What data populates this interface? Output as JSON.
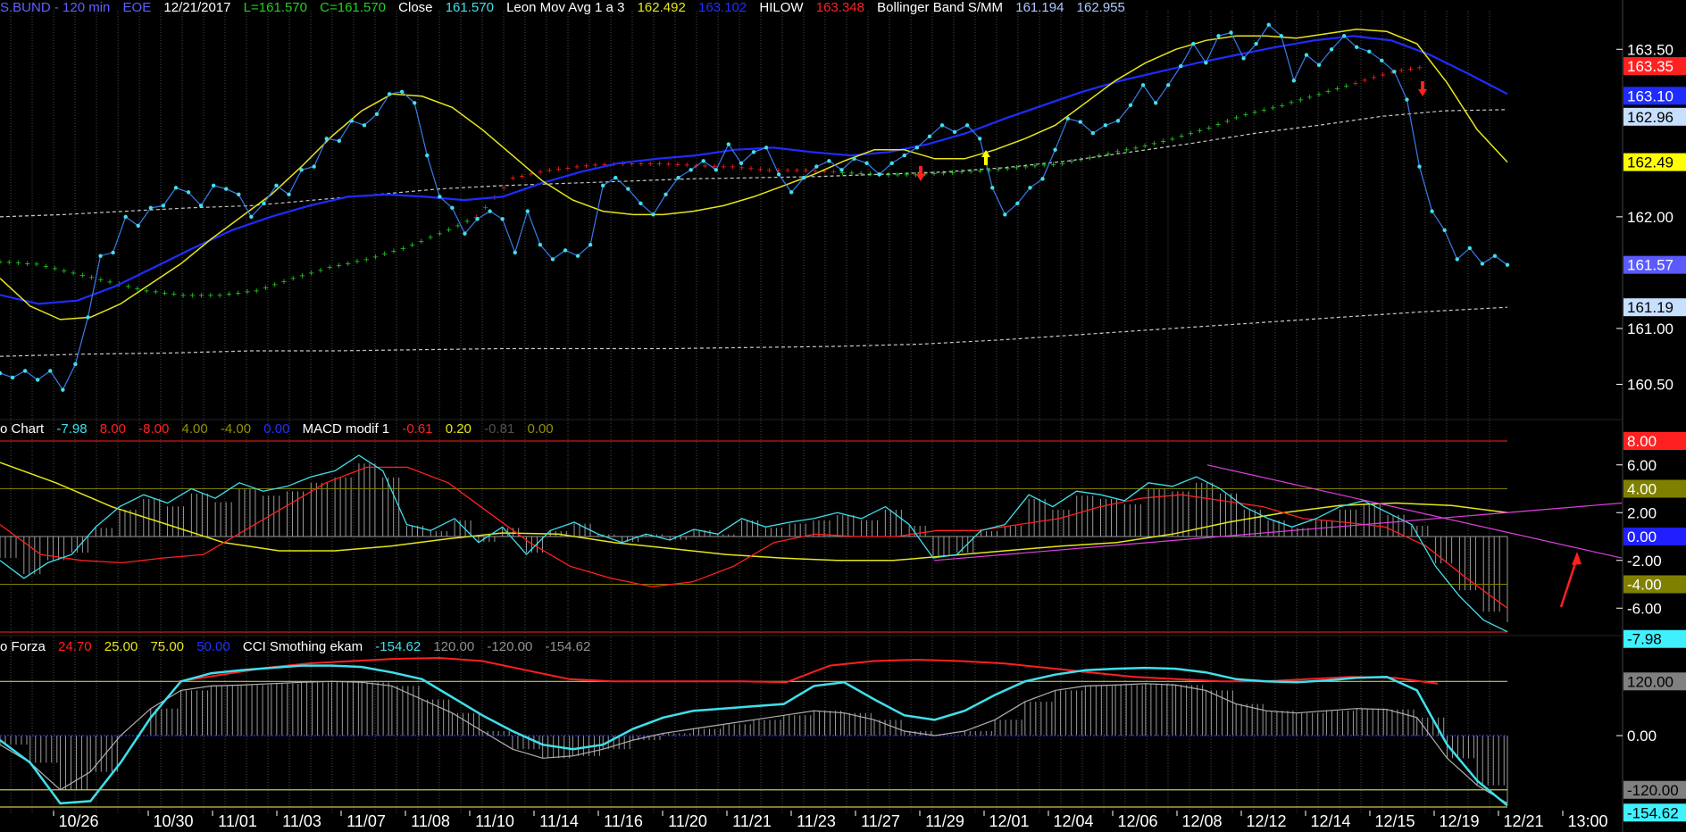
{
  "header": {
    "symbol": "S.BUND - 120 min",
    "session": "EOE",
    "date": "12/21/2017",
    "low": "L=161.570",
    "close_val": "C=161.570",
    "close_word": "Close",
    "close_num": "161.570",
    "leon_name": "Leon Mov Avg 1 a 3",
    "leon_v1": "162.492",
    "leon_v2": "163.102",
    "hilow_name": "HILOW",
    "hilow_v": "163.348",
    "bb_name": "Bollinger Band S/MM",
    "bb_v1": "161.194",
    "bb_v2": "162.955"
  },
  "panel2_header": {
    "name": "o Chart",
    "v1": "-7.98",
    "v2": "8.00",
    "v3": "-8.00",
    "v4": "4.00",
    "v5": "-4.00",
    "v6": "0.00",
    "macd_name": "MACD modif 1",
    "m1": "-0.61",
    "m2": "0.20",
    "m3": "-0.81",
    "m4": "0.00"
  },
  "panel3_header": {
    "name": "o Forza",
    "v1": "24.70",
    "v2": "25.00",
    "v3": "75.00",
    "v4": "50.00",
    "cci_name": "CCI Smothing ekam",
    "c1": "-154.62",
    "c2": "120.00",
    "c3": "-120.00",
    "c4": "-154.62"
  },
  "colors": {
    "cyan": "#40e0ec",
    "blue": "#1f2cff",
    "yellow": "#e6e61a",
    "red": "#ff2020",
    "green": "#22d022",
    "grid": "#5a5a5a",
    "magenta": "#e040e0",
    "band": "#c8c8c8"
  },
  "x_labels": [
    "10/26",
    "10/30",
    "11/01",
    "11/03",
    "11/07",
    "11/08",
    "11/10",
    "11/14",
    "11/16",
    "11/20",
    "11/21",
    "11/23",
    "11/27",
    "11/29",
    "12/01",
    "12/04",
    "12/06",
    "12/08",
    "12/12",
    "12/14",
    "12/15",
    "12/19",
    "12/21",
    "13:00"
  ],
  "y_axis_main": [
    "163.50",
    "162.00",
    "161.00",
    "160.50"
  ],
  "y_axis_main_tags": [
    {
      "text": "163.35",
      "bg": "#ff2020",
      "fg": "#ffffff"
    },
    {
      "text": "163.10",
      "bg": "#1f2cff",
      "fg": "#ffffff"
    },
    {
      "text": "162.96",
      "bg": "#c8e0ff",
      "fg": "#000000"
    },
    {
      "text": "162.49",
      "bg": "#ffff00",
      "fg": "#000000"
    },
    {
      "text": "161.57",
      "bg": "#5a5aff",
      "fg": "#ffffff"
    },
    {
      "text": "161.19",
      "bg": "#c8e0ff",
      "fg": "#000000"
    }
  ],
  "y_axis_macd": [
    "6.00",
    "2.00",
    "-2.00",
    "-6.00"
  ],
  "y_axis_macd_tags": [
    {
      "text": "8.00",
      "bg": "#ff2020",
      "fg": "#ffffff"
    },
    {
      "text": "4.00",
      "bg": "#808000",
      "fg": "#ffffff"
    },
    {
      "text": "0.00",
      "bg": "#1f1fff",
      "fg": "#ffffff"
    },
    {
      "text": "-4.00",
      "bg": "#808000",
      "fg": "#ffffff"
    },
    {
      "text": "-7.98",
      "bg": "#40f0ff",
      "fg": "#000000"
    }
  ],
  "y_axis_cci": [
    "0.00"
  ],
  "y_axis_cci_tags": [
    {
      "text": "120.00",
      "bg": "#808080",
      "fg": "#000000"
    },
    {
      "text": "-120.00",
      "bg": "#808080",
      "fg": "#000000"
    },
    {
      "text": "-154.62",
      "bg": "#40f0ff",
      "fg": "#000000"
    }
  ],
  "chart_data": {
    "type": "line",
    "panels": [
      {
        "name": "price",
        "ylim": [
          160.2,
          163.75
        ],
        "series": [
          {
            "name": "Close",
            "values": [
              160.6,
              160.56,
              160.62,
              160.54,
              160.62,
              160.45,
              160.68,
              161.1,
              161.65,
              161.68,
              162.0,
              161.92,
              162.08,
              162.1,
              162.26,
              162.22,
              162.1,
              162.28,
              162.25,
              162.2,
              162.0,
              162.12,
              162.28,
              162.2,
              162.42,
              162.45,
              162.7,
              162.68,
              162.86,
              162.82,
              162.92,
              163.1,
              163.12,
              163.02,
              162.55,
              162.18,
              162.08,
              161.85,
              161.98,
              162.05,
              161.98,
              161.68,
              162.05,
              161.75,
              161.62,
              161.7,
              161.65,
              161.75,
              162.28,
              162.35,
              162.25,
              162.12,
              162.02,
              162.2,
              162.35,
              162.42,
              162.5,
              162.42,
              162.65,
              162.48,
              162.58,
              162.62,
              162.38,
              162.22,
              162.35,
              162.45,
              162.5,
              162.42,
              162.52,
              162.48,
              162.38,
              162.48,
              162.55,
              162.62,
              162.72,
              162.82,
              162.76,
              162.82,
              162.7,
              162.26,
              162.02,
              162.12,
              162.26,
              162.34,
              162.6,
              162.88,
              162.85,
              162.75,
              162.82,
              162.86,
              163.0,
              163.18,
              163.02,
              163.18,
              163.35,
              163.55,
              163.38,
              163.62,
              163.65,
              163.42,
              163.55,
              163.72,
              163.62,
              163.22,
              163.45,
              163.36,
              163.5,
              163.62,
              163.52,
              163.48,
              163.4,
              163.3,
              163.05,
              162.45,
              162.05,
              161.88,
              161.62,
              161.72,
              161.58,
              161.65,
              161.57
            ]
          },
          {
            "name": "Leon Mov Avg 1 a 3",
            "values": [
              161.45,
              161.2,
              161.08,
              161.1,
              161.22,
              161.4,
              161.58,
              161.8,
              162.0,
              162.2,
              162.45,
              162.72,
              162.95,
              163.1,
              163.08,
              162.98,
              162.78,
              162.55,
              162.32,
              162.15,
              162.05,
              162.02,
              162.02,
              162.05,
              162.1,
              162.18,
              162.28,
              162.38,
              162.5,
              162.6,
              162.6,
              162.52,
              162.52,
              162.6,
              162.7,
              162.82,
              163.02,
              163.22,
              163.38,
              163.5,
              163.58,
              163.62,
              163.62,
              163.6,
              163.64,
              163.68,
              163.66,
              163.55,
              163.2,
              162.78,
              162.49
            ]
          },
          {
            "name": "Leon Mov Avg 1 a 3 (blue)",
            "values": [
              161.3,
              161.22,
              161.25,
              161.38,
              161.55,
              161.72,
              161.88,
              162.0,
              162.1,
              162.18,
              162.2,
              162.18,
              162.15,
              162.18,
              162.3,
              162.4,
              162.48,
              162.52,
              162.55,
              162.6,
              162.62,
              162.58,
              162.55,
              162.58,
              162.65,
              162.75,
              162.88,
              163.0,
              163.12,
              163.22,
              163.3,
              163.38,
              163.45,
              163.52,
              163.58,
              163.62,
              163.58,
              163.45,
              163.28,
              163.1
            ]
          },
          {
            "name": "HILOW",
            "values": [
              161.6,
              161.58,
              161.5,
              161.42,
              161.34,
              161.3,
              161.3,
              161.34,
              161.45,
              161.55,
              161.62,
              161.72,
              161.85,
              162.0,
              162.35,
              162.42,
              162.46,
              162.48,
              162.48,
              162.46,
              162.45,
              162.42,
              162.42,
              162.4,
              162.38,
              162.38,
              162.4,
              162.42,
              162.45,
              162.48,
              162.55,
              162.62,
              162.7,
              162.8,
              162.92,
              163.0,
              163.1,
              163.2,
              163.3,
              163.35
            ]
          },
          {
            "name": "Bollinger Band S/MM",
            "values": [
              162.0,
              162.02,
              162.05,
              162.08,
              162.1,
              162.15,
              162.2,
              162.25,
              162.28,
              162.3,
              162.32,
              162.34,
              162.35,
              162.36,
              162.38,
              162.4,
              162.44,
              162.5,
              162.58,
              162.66,
              162.75,
              162.82,
              162.9,
              162.95,
              162.96
            ]
          },
          {
            "name": "Bollinger Band S/MM (lower)",
            "values": [
              160.75,
              160.77,
              160.78,
              160.8,
              160.8,
              160.81,
              160.82,
              160.82,
              160.82,
              160.83,
              160.84,
              160.86,
              160.9,
              160.95,
              161.0,
              161.05,
              161.1,
              161.15,
              161.19
            ]
          }
        ]
      },
      {
        "name": "MACD modif 1",
        "ylim": [
          -8,
          8
        ],
        "series": [
          {
            "name": "cyan",
            "values": [
              -2.0,
              -3.5,
              -2.2,
              -1.5,
              0.8,
              2.5,
              3.5,
              2.8,
              4.0,
              3.2,
              4.5,
              3.8,
              4.2,
              5.0,
              5.5,
              6.8,
              5.5,
              1.0,
              0.5,
              1.5,
              -0.5,
              0.8,
              -1.5,
              0.5,
              1.2,
              0.2,
              -0.5,
              0.2,
              -0.3,
              0.6,
              0.2,
              1.5,
              0.8,
              1.2,
              1.5,
              2.0,
              1.5,
              2.5,
              1.0,
              -1.8,
              -1.5,
              0.5,
              1.0,
              3.5,
              2.5,
              3.8,
              3.5,
              3.0,
              4.5,
              4.2,
              5.0,
              4.0,
              2.5,
              1.5,
              0.8,
              1.5,
              2.5,
              3.0,
              2.0,
              1.0,
              -2.5,
              -5.0,
              -7.0,
              -7.98
            ]
          },
          {
            "name": "red",
            "values": [
              1.0,
              -1.5,
              -2.0,
              -2.2,
              -1.8,
              -1.5,
              0.5,
              2.5,
              4.5,
              5.8,
              5.8,
              4.5,
              2.0,
              -0.5,
              -2.5,
              -3.5,
              -4.2,
              -3.8,
              -2.5,
              -0.5,
              0.2,
              0.0,
              0.0,
              0.5,
              0.5,
              1.0,
              1.5,
              2.5,
              3.2,
              3.5,
              3.0,
              2.5,
              1.5,
              1.2,
              0.8,
              -0.8,
              -3.5,
              -6.0
            ]
          },
          {
            "name": "yellow",
            "values": [
              6.2,
              4.5,
              2.5,
              1.0,
              -0.5,
              -1.2,
              -1.2,
              -0.8,
              -0.2,
              0.3,
              0.2,
              -0.5,
              -1.0,
              -1.5,
              -1.8,
              -2.0,
              -2.0,
              -1.6,
              -1.2,
              -0.8,
              -0.5,
              0.2,
              1.2,
              2.0,
              2.6,
              2.8,
              2.6,
              2.0
            ]
          },
          {
            "name": "trend",
            "values": [
              -2.0,
              2.8
            ]
          },
          {
            "name": "trend2",
            "values": [
              6.0,
              -1.8
            ]
          }
        ]
      },
      {
        "name": "CCI Smothing ekam",
        "ylim": [
          -160,
          170
        ],
        "series": [
          {
            "name": "cyan",
            "values": [
              -10,
              -60,
              -150,
              -145,
              -60,
              40,
              120,
              138,
              145,
              150,
              155,
              155,
              152,
              140,
              125,
              85,
              45,
              10,
              -20,
              -30,
              -20,
              15,
              40,
              55,
              60,
              65,
              70,
              110,
              118,
              80,
              45,
              35,
              55,
              90,
              120,
              135,
              145,
              148,
              150,
              148,
              140,
              125,
              120,
              118,
              122,
              128,
              130,
              100,
              -20,
              -100,
              -154.62
            ]
          },
          {
            "name": "grey",
            "values": [
              -20,
              -60,
              -120,
              -80,
              0,
              60,
              100,
              110,
              112,
              115,
              118,
              120,
              118,
              110,
              80,
              50,
              10,
              -30,
              -50,
              -45,
              -30,
              -10,
              5,
              15,
              25,
              35,
              45,
              55,
              50,
              35,
              10,
              0,
              10,
              35,
              75,
              100,
              110,
              112,
              115,
              112,
              100,
              70,
              55,
              50,
              55,
              60,
              58,
              40,
              -50,
              -110,
              -150
            ]
          },
          {
            "name": "red",
            "values": [
              120,
              135,
              150,
              160,
              165,
              170,
              172,
              165,
              145,
              125,
              120,
              120,
              120,
              120,
              118,
              155,
              165,
              168,
              165,
              160,
              150,
              140,
              130,
              125,
              120,
              120,
              125,
              130,
              128,
              115
            ]
          },
          {
            "name": "level",
            "values": [
              120,
              -120,
              24.7,
              25,
              75,
              50
            ]
          }
        ]
      }
    ]
  }
}
